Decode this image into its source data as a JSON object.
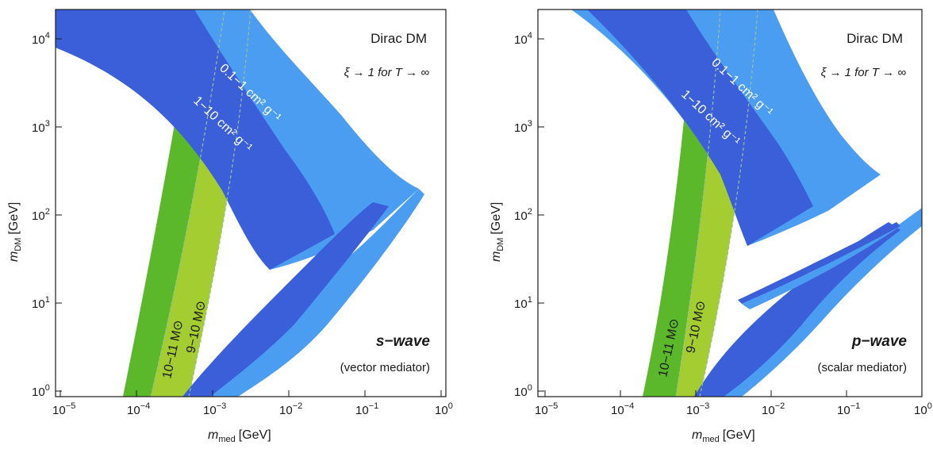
{
  "chart_data": [
    {
      "type": "area",
      "panel": "left",
      "xlabel_main": "m",
      "xlabel_sub": "med",
      "xlabel_unit": "[GeV]",
      "ylabel_main": "m",
      "ylabel_sub": "DM",
      "ylabel_unit": "[GeV]",
      "xscale": "log",
      "yscale": "log",
      "xlim": [
        1e-05,
        1
      ],
      "ylim": [
        0.8,
        20000
      ],
      "x_ticks": [
        {
          "base": "10",
          "exp": "−5"
        },
        {
          "base": "10",
          "exp": "−4"
        },
        {
          "base": "10",
          "exp": "−3"
        },
        {
          "base": "10",
          "exp": "−2"
        },
        {
          "base": "10",
          "exp": "−1"
        },
        {
          "base": "10",
          "exp": "0"
        }
      ],
      "y_ticks": [
        {
          "base": "10",
          "exp": "0"
        },
        {
          "base": "10",
          "exp": "1"
        },
        {
          "base": "10",
          "exp": "2"
        },
        {
          "base": "10",
          "exp": "3"
        },
        {
          "base": "10",
          "exp": "4"
        }
      ],
      "title": "Dirac DM",
      "subtitle": "ξ → 1 for T → ∞",
      "wave_label": "s−wave",
      "mediator_label": "(vector mediator)",
      "series": [
        {
          "name": "10−11 M⊙",
          "color": "#5cb82b",
          "kind": "mass-band",
          "lower": [
            [
              7e-05,
              0.8
            ],
            [
              0.00015,
              10
            ],
            [
              0.0003,
              300
            ],
            [
              0.0005,
              20000
            ]
          ],
          "upper": [
            [
              0.00019,
              0.8
            ],
            [
              0.00032,
              10
            ],
            [
              0.00055,
              300
            ],
            [
              0.0012,
              20000
            ]
          ]
        },
        {
          "name": "9−10 M⊙",
          "color": "#a3cd30",
          "kind": "mass-band",
          "lower": [
            [
              0.00019,
              0.8
            ],
            [
              0.00032,
              10
            ],
            [
              0.00055,
              300
            ],
            [
              0.0012,
              20000
            ]
          ],
          "upper": [
            [
              0.0005,
              0.8
            ],
            [
              0.0008,
              10
            ],
            [
              0.0013,
              300
            ],
            [
              0.003,
              20000
            ]
          ]
        },
        {
          "name": "0.1−1 cm² g⁻¹",
          "color": "#4a9df0",
          "kind": "cross-section-band",
          "upper_edge": [
            [
              1e-05,
              20000
            ],
            [
              0.001,
              20000
            ],
            [
              0.003,
              5000
            ],
            [
              0.01,
              700
            ],
            [
              0.03,
              250
            ],
            [
              0.1,
              130
            ],
            [
              0.2,
              140
            ],
            [
              0.5,
              200
            ]
          ],
          "lower_edge": [
            [
              1e-05,
              20000
            ],
            [
              0.0001,
              12000
            ],
            [
              0.001,
              2500
            ],
            [
              0.003,
              500
            ],
            [
              0.008,
              150
            ],
            [
              0.015,
              70
            ],
            [
              0.03,
              40
            ]
          ],
          "low_branch": [
            [
              0.0005,
              0.8
            ],
            [
              0.003,
              2
            ],
            [
              0.01,
              8
            ],
            [
              0.04,
              25
            ],
            [
              0.15,
              70
            ],
            [
              0.5,
              200
            ]
          ]
        },
        {
          "name": "1−10 cm² g⁻¹",
          "color": "#3a5fd9",
          "kind": "cross-section-band",
          "upper_edge": [
            [
              1e-05,
              20000
            ],
            [
              0.0001,
              12000
            ],
            [
              0.0005,
              5000
            ],
            [
              0.001,
              2200
            ],
            [
              0.003,
              600
            ],
            [
              0.008,
              180
            ],
            [
              0.02,
              90
            ],
            [
              0.05,
              70
            ],
            [
              0.1,
              90
            ],
            [
              0.3,
              160
            ]
          ],
          "lower_edge": [
            [
              1e-05,
              15000
            ],
            [
              5e-05,
              10000
            ],
            [
              0.0002,
              4000
            ],
            [
              0.001,
              800
            ],
            [
              0.003,
              150
            ],
            [
              0.007,
              60
            ],
            [
              0.015,
              30
            ]
          ],
          "low_branch": [
            [
              0.0004,
              0.8
            ],
            [
              0.002,
              2
            ],
            [
              0.008,
              7
            ],
            [
              0.03,
              20
            ],
            [
              0.1,
              50
            ],
            [
              0.3,
              110
            ]
          ]
        }
      ]
    },
    {
      "type": "area",
      "panel": "right",
      "xlabel_main": "m",
      "xlabel_sub": "med",
      "xlabel_unit": "[GeV]",
      "ylabel_main": "m",
      "ylabel_sub": "DM",
      "ylabel_unit": "[GeV]",
      "xscale": "log",
      "yscale": "log",
      "xlim": [
        1e-05,
        1
      ],
      "ylim": [
        0.8,
        20000
      ],
      "x_ticks": [
        {
          "base": "10",
          "exp": "−5"
        },
        {
          "base": "10",
          "exp": "−4"
        },
        {
          "base": "10",
          "exp": "−3"
        },
        {
          "base": "10",
          "exp": "−2"
        },
        {
          "base": "10",
          "exp": "−1"
        },
        {
          "base": "10",
          "exp": "0"
        }
      ],
      "y_ticks": [
        {
          "base": "10",
          "exp": "0"
        },
        {
          "base": "10",
          "exp": "1"
        },
        {
          "base": "10",
          "exp": "2"
        },
        {
          "base": "10",
          "exp": "3"
        },
        {
          "base": "10",
          "exp": "4"
        }
      ],
      "title": "Dirac DM",
      "subtitle": "ξ → 1 for T → ∞",
      "wave_label": "p−wave",
      "mediator_label": "(scalar mediator)",
      "series": [
        {
          "name": "10−11 M⊙",
          "color": "#5cb82b",
          "kind": "mass-band",
          "lower": [
            [
              0.00015,
              0.8
            ],
            [
              0.0003,
              10
            ],
            [
              0.0006,
              300
            ],
            [
              0.0012,
              20000
            ]
          ],
          "upper": [
            [
              0.0004,
              0.8
            ],
            [
              0.0007,
              10
            ],
            [
              0.0013,
              300
            ],
            [
              0.0028,
              20000
            ]
          ]
        },
        {
          "name": "9−10 M⊙",
          "color": "#a3cd30",
          "kind": "mass-band",
          "lower": [
            [
              0.0004,
              0.8
            ],
            [
              0.0007,
              10
            ],
            [
              0.0013,
              300
            ],
            [
              0.0028,
              20000
            ]
          ],
          "upper": [
            [
              0.001,
              0.8
            ],
            [
              0.0018,
              10
            ],
            [
              0.0032,
              300
            ],
            [
              0.007,
              20000
            ]
          ]
        },
        {
          "name": "0.1−1 cm² g⁻¹",
          "color": "#4a9df0",
          "kind": "cross-section-band",
          "upper_edge": [
            [
              0.0001,
              20000
            ],
            [
              0.004,
              20000
            ],
            [
              0.01,
              5000
            ],
            [
              0.03,
              700
            ],
            [
              0.08,
              200
            ],
            [
              0.15,
              150
            ]
          ],
          "lower_edge": [
            [
              0.0001,
              20000
            ],
            [
              0.001,
              9000
            ],
            [
              0.005,
              1500
            ],
            [
              0.01,
              400
            ],
            [
              0.02,
              120
            ],
            [
              0.03,
              60
            ]
          ],
          "low_branch": [
            [
              0.002,
              0.8
            ],
            [
              0.01,
              2
            ],
            [
              0.05,
              10
            ],
            [
              0.2,
              40
            ],
            [
              1,
              120
            ]
          ]
        },
        {
          "name": "1−10 cm² g⁻¹",
          "color": "#3a5fd9",
          "kind": "cross-section-band",
          "upper_edge": [
            [
              0.0001,
              20000
            ],
            [
              0.0008,
              12000
            ],
            [
              0.003,
              3000
            ],
            [
              0.008,
              700
            ],
            [
              0.02,
              180
            ],
            [
              0.05,
              80
            ]
          ],
          "lower_edge": [
            [
              0.0003,
              20000
            ],
            [
              0.001,
              6000
            ],
            [
              0.004,
              800
            ],
            [
              0.01,
              150
            ],
            [
              0.02,
              50
            ]
          ],
          "low_branch": [
            [
              0.001,
              0.8
            ],
            [
              0.006,
              2
            ],
            [
              0.03,
              8
            ],
            [
              0.15,
              30
            ],
            [
              0.6,
              100
            ]
          ]
        }
      ]
    }
  ]
}
